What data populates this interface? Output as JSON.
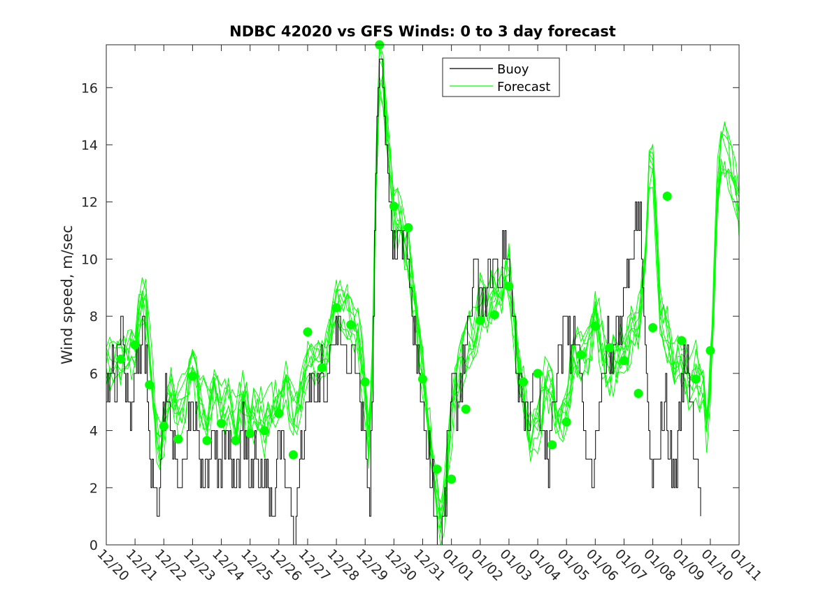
{
  "chart_data": {
    "type": "line",
    "title": "NDBC 42020 vs GFS Winds: 0 to 3 day forecast",
    "xlabel": "",
    "ylabel": "Wind speed, m/sec",
    "xlim": [
      0,
      22
    ],
    "ylim": [
      0,
      17.5
    ],
    "yticks": [
      0,
      2,
      4,
      6,
      8,
      10,
      12,
      14,
      16
    ],
    "xtick_labels": [
      "12/20",
      "12/21",
      "12/22",
      "12/23",
      "12/24",
      "12/25",
      "12/26",
      "12/27",
      "12/28",
      "12/29",
      "12/30",
      "12/31",
      "01/01",
      "01/02",
      "01/03",
      "01/04",
      "01/05",
      "01/06",
      "01/07",
      "01/08",
      "01/09",
      "01/10",
      "01/11"
    ],
    "legend": {
      "position": "top-center",
      "entries": [
        "Buoy",
        "Forecast"
      ]
    },
    "colors": {
      "buoy": "#000000",
      "forecast": "#00ff00",
      "axis": "#262626"
    },
    "buoy_anchors": [
      [
        0,
        5
      ],
      [
        0.1,
        6
      ],
      [
        0.2,
        7
      ],
      [
        0.3,
        6
      ],
      [
        0.45,
        7
      ],
      [
        0.55,
        8
      ],
      [
        0.65,
        6
      ],
      [
        0.75,
        5
      ],
      [
        0.85,
        4
      ],
      [
        0.95,
        6
      ],
      [
        1.05,
        7
      ],
      [
        1.15,
        6
      ],
      [
        1.25,
        8
      ],
      [
        1.35,
        7
      ],
      [
        1.45,
        5
      ],
      [
        1.55,
        3
      ],
      [
        1.65,
        2
      ],
      [
        1.75,
        1
      ],
      [
        1.85,
        3
      ],
      [
        1.95,
        4
      ],
      [
        2.05,
        5
      ],
      [
        2.2,
        4
      ],
      [
        2.35,
        3
      ],
      [
        2.5,
        2
      ],
      [
        2.65,
        3
      ],
      [
        2.8,
        4
      ],
      [
        2.95,
        5
      ],
      [
        3.1,
        4
      ],
      [
        3.25,
        3
      ],
      [
        3.4,
        2
      ],
      [
        3.55,
        3
      ],
      [
        3.7,
        4
      ],
      [
        3.85,
        3
      ],
      [
        4,
        3
      ],
      [
        4.15,
        4
      ],
      [
        4.3,
        3
      ],
      [
        4.45,
        2
      ],
      [
        4.6,
        3
      ],
      [
        4.75,
        4
      ],
      [
        4.9,
        3
      ],
      [
        5.05,
        2
      ],
      [
        5.2,
        3
      ],
      [
        5.35,
        2
      ],
      [
        5.5,
        3
      ],
      [
        5.65,
        2
      ],
      [
        5.8,
        1
      ],
      [
        5.95,
        3
      ],
      [
        6.1,
        4
      ],
      [
        6.25,
        2
      ],
      [
        6.4,
        1
      ],
      [
        6.55,
        0
      ],
      [
        6.7,
        3
      ],
      [
        6.85,
        4
      ],
      [
        7,
        5
      ],
      [
        7.15,
        6
      ],
      [
        7.3,
        5
      ],
      [
        7.45,
        6
      ],
      [
        7.6,
        5
      ],
      [
        7.75,
        6
      ],
      [
        7.9,
        7
      ],
      [
        8.05,
        8
      ],
      [
        8.2,
        7
      ],
      [
        8.35,
        6
      ],
      [
        8.5,
        7
      ],
      [
        8.65,
        6
      ],
      [
        8.8,
        5
      ],
      [
        8.95,
        4
      ],
      [
        9.05,
        3
      ],
      [
        9.15,
        1
      ],
      [
        9.25,
        6
      ],
      [
        9.35,
        13
      ],
      [
        9.45,
        16
      ],
      [
        9.55,
        17
      ],
      [
        9.65,
        15
      ],
      [
        9.75,
        13
      ],
      [
        9.85,
        12
      ],
      [
        9.95,
        11
      ],
      [
        10.05,
        10
      ],
      [
        10.15,
        11
      ],
      [
        10.25,
        10
      ],
      [
        10.35,
        11
      ],
      [
        10.45,
        10
      ],
      [
        10.55,
        9
      ],
      [
        10.65,
        8
      ],
      [
        10.75,
        7
      ],
      [
        10.85,
        6
      ],
      [
        10.95,
        5
      ],
      [
        11.05,
        4
      ],
      [
        11.15,
        3
      ],
      [
        11.25,
        3
      ],
      [
        11.35,
        2
      ],
      [
        11.45,
        1
      ],
      [
        11.55,
        0
      ],
      [
        11.65,
        0
      ],
      [
        11.75,
        1
      ],
      [
        11.85,
        3
      ],
      [
        11.95,
        5
      ],
      [
        12.05,
        6
      ],
      [
        12.2,
        5
      ],
      [
        12.35,
        6
      ],
      [
        12.5,
        7
      ],
      [
        12.65,
        8
      ],
      [
        12.8,
        10
      ],
      [
        12.95,
        9
      ],
      [
        13.1,
        8
      ],
      [
        13.25,
        10
      ],
      [
        13.4,
        9
      ],
      [
        13.55,
        10
      ],
      [
        13.7,
        9
      ],
      [
        13.85,
        11
      ],
      [
        14,
        10
      ],
      [
        14.15,
        8
      ],
      [
        14.3,
        6
      ],
      [
        14.45,
        5
      ],
      [
        14.6,
        4
      ],
      [
        14.75,
        5
      ],
      [
        14.9,
        6
      ],
      [
        15.05,
        5
      ],
      [
        15.2,
        4
      ],
      [
        15.35,
        3
      ],
      [
        15.5,
        4
      ],
      [
        15.65,
        6
      ],
      [
        15.8,
        7
      ],
      [
        15.95,
        8
      ],
      [
        16.1,
        7
      ],
      [
        16.25,
        8
      ],
      [
        16.4,
        7
      ],
      [
        16.55,
        5
      ],
      [
        16.7,
        3
      ],
      [
        16.85,
        2
      ],
      [
        17,
        3
      ],
      [
        17.15,
        5
      ],
      [
        17.3,
        6
      ],
      [
        17.45,
        7
      ],
      [
        17.6,
        6
      ],
      [
        17.75,
        7
      ],
      [
        17.9,
        8
      ],
      [
        18.05,
        9
      ],
      [
        18.2,
        10
      ],
      [
        18.35,
        11
      ],
      [
        18.5,
        12
      ],
      [
        18.6,
        10
      ],
      [
        18.7,
        7
      ],
      [
        18.8,
        5
      ],
      [
        18.9,
        3
      ],
      [
        19,
        2
      ],
      [
        19.15,
        3
      ],
      [
        19.3,
        4
      ],
      [
        19.45,
        5
      ],
      [
        19.6,
        3
      ],
      [
        19.75,
        2
      ],
      [
        19.9,
        4
      ],
      [
        20.05,
        6
      ],
      [
        20.2,
        7
      ],
      [
        20.35,
        5
      ],
      [
        20.5,
        3
      ],
      [
        20.6,
        2
      ],
      [
        20.7,
        1
      ]
    ],
    "forecast_anchors": [
      [
        0,
        6.2
      ],
      [
        0.5,
        6.5
      ],
      [
        1,
        6.8
      ],
      [
        1.2,
        8.2
      ],
      [
        1.3,
        8.9
      ],
      [
        1.5,
        6.8
      ],
      [
        1.7,
        4.4
      ],
      [
        1.85,
        2.9
      ],
      [
        2,
        4.2
      ],
      [
        2.25,
        5.4
      ],
      [
        2.5,
        4.6
      ],
      [
        2.75,
        5.2
      ],
      [
        3,
        6.2
      ],
      [
        3.25,
        5.2
      ],
      [
        3.5,
        4.5
      ],
      [
        3.75,
        5.6
      ],
      [
        4,
        4.8
      ],
      [
        4.25,
        5.3
      ],
      [
        4.5,
        4.2
      ],
      [
        4.75,
        5
      ],
      [
        5,
        4.4
      ],
      [
        5.25,
        4.6
      ],
      [
        5.5,
        4.2
      ],
      [
        5.75,
        4.7
      ],
      [
        6,
        4.9
      ],
      [
        6.25,
        5.7
      ],
      [
        6.5,
        4.6
      ],
      [
        6.75,
        5.2
      ],
      [
        7,
        6.4
      ],
      [
        7.25,
        6.6
      ],
      [
        7.5,
        6.5
      ],
      [
        7.75,
        7.2
      ],
      [
        8,
        8.5
      ],
      [
        8.25,
        8.2
      ],
      [
        8.5,
        8.3
      ],
      [
        8.75,
        7.4
      ],
      [
        9,
        5.5
      ],
      [
        9.15,
        3.2
      ],
      [
        9.25,
        6.5
      ],
      [
        9.35,
        12
      ],
      [
        9.5,
        16.5
      ],
      [
        9.65,
        16.2
      ],
      [
        9.8,
        13.5
      ],
      [
        10,
        11.5
      ],
      [
        10.25,
        11.2
      ],
      [
        10.5,
        10.2
      ],
      [
        10.75,
        8.2
      ],
      [
        11,
        6
      ],
      [
        11.25,
        3.8
      ],
      [
        11.45,
        2.2
      ],
      [
        11.6,
        0.8
      ],
      [
        11.75,
        1.4
      ],
      [
        11.9,
        3.2
      ],
      [
        12.1,
        5.4
      ],
      [
        12.4,
        6.4
      ],
      [
        12.6,
        7.2
      ],
      [
        12.8,
        7.3
      ],
      [
        13,
        8.5
      ],
      [
        13.25,
        8.2
      ],
      [
        13.5,
        8.7
      ],
      [
        13.75,
        8.8
      ],
      [
        14,
        9.6
      ],
      [
        14.25,
        6.8
      ],
      [
        14.5,
        5.4
      ],
      [
        14.75,
        3.8
      ],
      [
        15,
        4
      ],
      [
        15.25,
        5.6
      ],
      [
        15.5,
        5.2
      ],
      [
        15.75,
        4
      ],
      [
        16,
        4.8
      ],
      [
        16.25,
        6.6
      ],
      [
        16.5,
        6.4
      ],
      [
        16.75,
        6.8
      ],
      [
        17,
        8.4
      ],
      [
        17.25,
        6.8
      ],
      [
        17.5,
        6.2
      ],
      [
        17.75,
        6.5
      ],
      [
        18,
        6.6
      ],
      [
        18.25,
        7.4
      ],
      [
        18.5,
        7.6
      ],
      [
        18.75,
        10.5
      ],
      [
        18.9,
        13.5
      ],
      [
        19,
        13.4
      ],
      [
        19.1,
        11.5
      ],
      [
        19.25,
        8
      ],
      [
        19.5,
        7.2
      ],
      [
        19.75,
        6.4
      ],
      [
        20,
        6.6
      ],
      [
        20.25,
        5.8
      ],
      [
        20.5,
        6.2
      ],
      [
        20.75,
        5.4
      ],
      [
        20.9,
        3.9
      ],
      [
        21.1,
        8
      ],
      [
        21.25,
        12.5
      ],
      [
        21.4,
        14
      ],
      [
        21.6,
        13.5
      ],
      [
        21.8,
        12.8
      ],
      [
        22,
        11.5
      ]
    ],
    "forecast_series_count": 8,
    "forecast_points": [
      [
        0.5,
        6.5
      ],
      [
        1,
        7
      ],
      [
        1.5,
        5.6
      ],
      [
        2,
        4.15
      ],
      [
        2.5,
        3.7
      ],
      [
        3,
        5.9
      ],
      [
        3.5,
        3.65
      ],
      [
        4,
        4.25
      ],
      [
        4.5,
        3.65
      ],
      [
        5,
        3.9
      ],
      [
        5.5,
        4
      ],
      [
        6,
        4.6
      ],
      [
        6.5,
        3.15
      ],
      [
        7,
        7.45
      ],
      [
        7.5,
        6.2
      ],
      [
        8,
        8.3
      ],
      [
        8.5,
        7.7
      ],
      [
        9,
        5.7
      ],
      [
        9.5,
        17.5
      ],
      [
        10,
        11.85
      ],
      [
        10.5,
        11.1
      ],
      [
        11,
        5.8
      ],
      [
        11.5,
        2.65
      ],
      [
        12,
        2.3
      ],
      [
        12.5,
        4.75
      ],
      [
        13,
        7.85
      ],
      [
        13.5,
        8.05
      ],
      [
        14,
        9.05
      ],
      [
        14.5,
        5.7
      ],
      [
        15,
        6
      ],
      [
        15.5,
        3.5
      ],
      [
        16,
        4.3
      ],
      [
        16.5,
        6.65
      ],
      [
        17,
        7.65
      ],
      [
        17.5,
        6.9
      ],
      [
        18,
        6.45
      ],
      [
        18.5,
        5.3
      ],
      [
        19,
        7.6
      ],
      [
        19.5,
        12.2
      ],
      [
        20,
        7.15
      ],
      [
        20.5,
        5.8
      ],
      [
        21,
        6.8
      ]
    ]
  }
}
